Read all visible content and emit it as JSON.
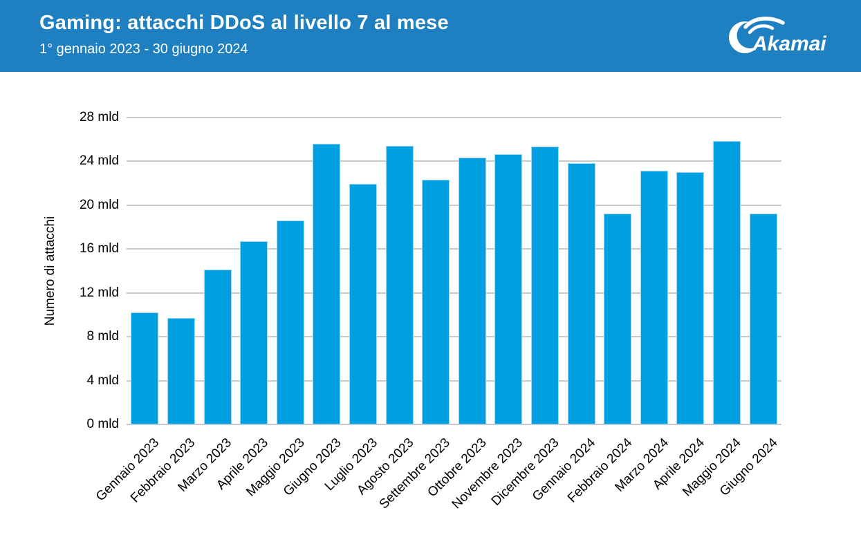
{
  "header": {
    "title": "Gaming: attacchi DDoS al livello 7 al mese",
    "subtitle": "1° gennaio 2023 - 30 giugno 2024",
    "brand": "Akamai",
    "background_color": "#1E80C1",
    "text_color": "#FFFFFF"
  },
  "chart_data": {
    "type": "bar",
    "title": "Gaming: attacchi DDoS al livello 7 al mese",
    "subtitle": "1° gennaio 2023 - 30 giugno 2024",
    "xlabel": "",
    "ylabel": "Numero di attacchi",
    "unit": "mld",
    "categories": [
      "Gennaio 2023",
      "Febbraio 2023",
      "Marzo 2023",
      "Aprile 2023",
      "Maggio 2023",
      "Giugno 2023",
      "Luglio 2023",
      "Agosto 2023",
      "Settembre 2023",
      "Ottobre 2023",
      "Novembre 2023",
      "Dicembre 2023",
      "Gennaio 2024",
      "Febbraio 2024",
      "Marzo 2024",
      "Aprile 2024",
      "Maggio 2024",
      "Giugno 2024"
    ],
    "values": [
      10.2,
      9.7,
      14.1,
      16.7,
      18.6,
      25.6,
      21.9,
      25.4,
      22.3,
      24.3,
      24.6,
      25.3,
      23.8,
      19.2,
      23.1,
      23.0,
      25.8,
      19.2
    ],
    "ytick_values": [
      0,
      4,
      8,
      12,
      16,
      20,
      24,
      28
    ],
    "ytick_labels": [
      "0 mld",
      "4 mld",
      "8 mld",
      "12 mld",
      "16 mld",
      "20 mld",
      "24 mld",
      "28 mld"
    ],
    "ylim": [
      0,
      28
    ],
    "grid": "horizontal",
    "legend": "none",
    "bar_color": "#009FE0",
    "gridline_color": "#C9C9C9"
  }
}
